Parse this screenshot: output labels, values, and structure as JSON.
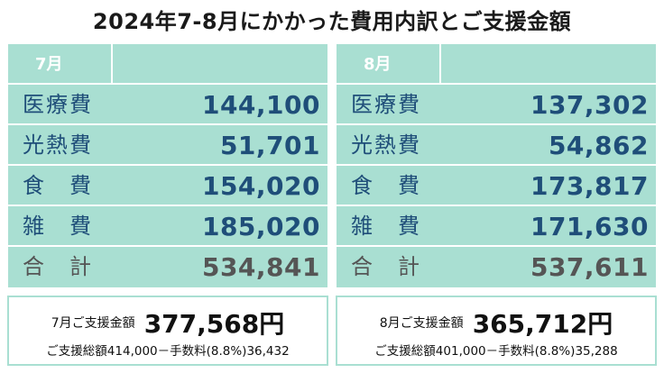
{
  "title": "2024年7-8月にかかった費用内訳とご支援金額",
  "colors": {
    "panel_bg": "#a9dfd2",
    "value_text": "#1f4e79",
    "total_text": "#555555"
  },
  "july": {
    "month": "7月",
    "rows": [
      {
        "label": "医療費",
        "value": "144,100"
      },
      {
        "label": "光熱費",
        "value": "51,701"
      },
      {
        "label": "食　費",
        "value": "154,020"
      },
      {
        "label": "雑　費",
        "value": "185,020"
      },
      {
        "label": "合　計",
        "value": "534,841"
      }
    ],
    "support_label": "7月ご支援金額",
    "support_amount": "377,568円",
    "support_detail": "ご支援総額414,000－手数料(8.8%)36,432"
  },
  "august": {
    "month": "8月",
    "rows": [
      {
        "label": "医療費",
        "value": "137,302"
      },
      {
        "label": "光熱費",
        "value": "54,862"
      },
      {
        "label": "食　費",
        "value": "173,817"
      },
      {
        "label": "雑　費",
        "value": "171,630"
      },
      {
        "label": "合　計",
        "value": "537,611"
      }
    ],
    "support_label": "8月ご支援金額",
    "support_amount": "365,712円",
    "support_detail": "ご支援総額401,000－手数料(8.8%)35,288"
  }
}
